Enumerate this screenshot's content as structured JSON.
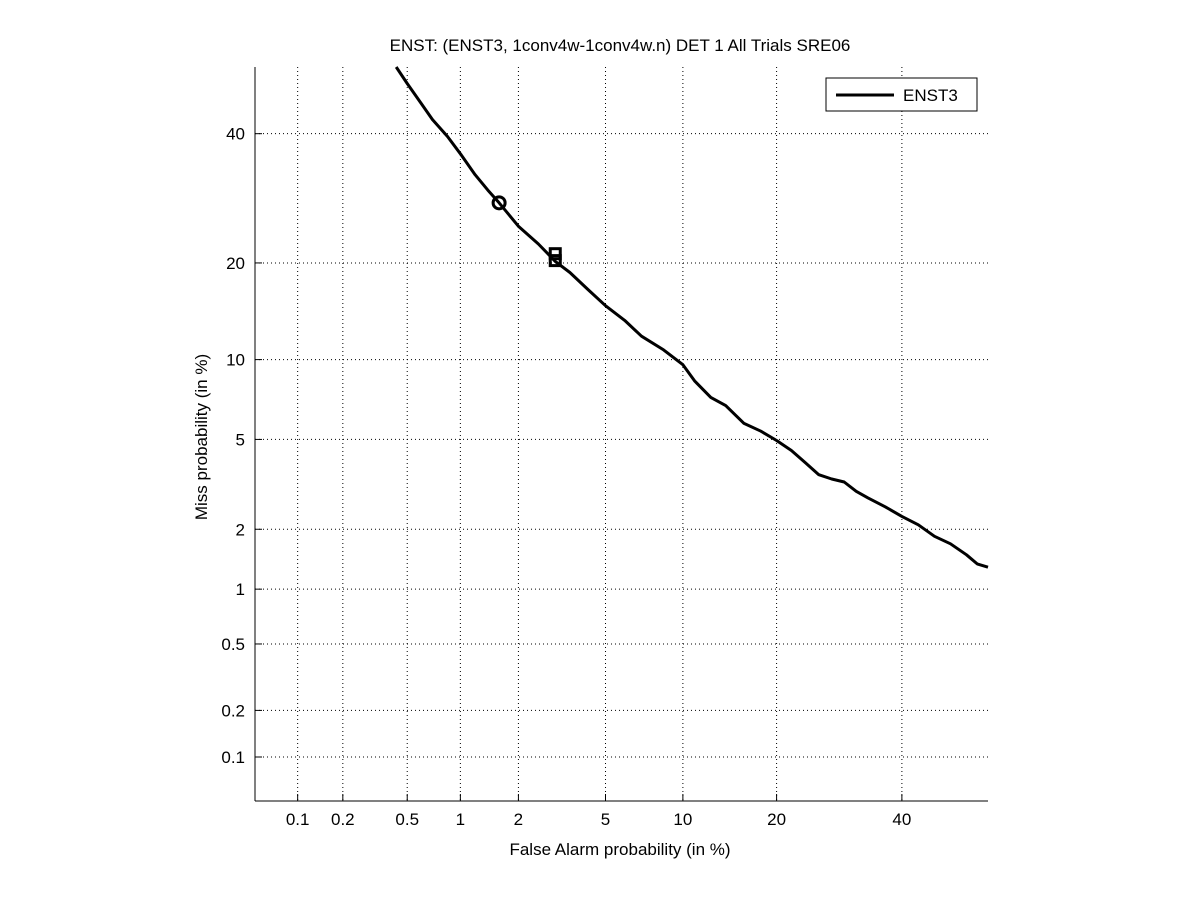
{
  "chart_data": {
    "type": "line",
    "title": "ENST: (ENST3, 1conv4w-1conv4w.n) DET 1 All Trials SRE06",
    "xlabel": "False Alarm probability (in %)",
    "ylabel": "Miss probability (in %)",
    "x_scale": "normal-deviate (probit)",
    "y_scale": "normal-deviate (probit)",
    "xlim": [
      0.05,
      56
    ],
    "ylim": [
      0.05,
      52
    ],
    "x_ticks": [
      0.1,
      0.2,
      0.5,
      1,
      2,
      5,
      10,
      20,
      40
    ],
    "x_tick_labels": [
      "0.1",
      "0.2",
      "0.5",
      "1",
      "2",
      "5",
      "10",
      "20",
      "40"
    ],
    "y_ticks": [
      0.1,
      0.2,
      0.5,
      1,
      2,
      5,
      10,
      20,
      40
    ],
    "y_tick_labels": [
      "0.1",
      "0.2",
      "0.5",
      "1",
      "2",
      "5",
      "10",
      "20",
      "40"
    ],
    "grid": true,
    "grid_style": "dotted",
    "legend_position": "top-right",
    "line_color": "#000000",
    "series": [
      {
        "name": "ENST3",
        "points": [
          {
            "x": 0.43,
            "y": 52
          },
          {
            "x": 0.5,
            "y": 49
          },
          {
            "x": 0.6,
            "y": 45.5
          },
          {
            "x": 0.7,
            "y": 42.5
          },
          {
            "x": 0.85,
            "y": 39.5
          },
          {
            "x": 1.0,
            "y": 36.5
          },
          {
            "x": 1.2,
            "y": 33
          },
          {
            "x": 1.4,
            "y": 30.5
          },
          {
            "x": 1.6,
            "y": 28.5
          },
          {
            "x": 2.0,
            "y": 25
          },
          {
            "x": 2.5,
            "y": 22.5
          },
          {
            "x": 3.0,
            "y": 20.2
          },
          {
            "x": 3.5,
            "y": 18.8
          },
          {
            "x": 4.2,
            "y": 16.8
          },
          {
            "x": 5.0,
            "y": 15.0
          },
          {
            "x": 6.0,
            "y": 13.5
          },
          {
            "x": 7.0,
            "y": 12.0
          },
          {
            "x": 8.5,
            "y": 10.8
          },
          {
            "x": 10.0,
            "y": 9.6
          },
          {
            "x": 11.0,
            "y": 8.4
          },
          {
            "x": 12.5,
            "y": 7.3
          },
          {
            "x": 14.0,
            "y": 6.8
          },
          {
            "x": 16.0,
            "y": 5.8
          },
          {
            "x": 18.0,
            "y": 5.4
          },
          {
            "x": 20.0,
            "y": 4.95
          },
          {
            "x": 22.0,
            "y": 4.5
          },
          {
            "x": 24.0,
            "y": 4.0
          },
          {
            "x": 26.0,
            "y": 3.55
          },
          {
            "x": 28.0,
            "y": 3.4
          },
          {
            "x": 30.0,
            "y": 3.3
          },
          {
            "x": 32.0,
            "y": 3.0
          },
          {
            "x": 34.0,
            "y": 2.8
          },
          {
            "x": 37.0,
            "y": 2.55
          },
          {
            "x": 40.0,
            "y": 2.3
          },
          {
            "x": 43.0,
            "y": 2.1
          },
          {
            "x": 46.0,
            "y": 1.85
          },
          {
            "x": 49.0,
            "y": 1.7
          },
          {
            "x": 52.0,
            "y": 1.5
          },
          {
            "x": 54.0,
            "y": 1.35
          },
          {
            "x": 56.0,
            "y": 1.3
          }
        ]
      }
    ],
    "markers": [
      {
        "name": "circle",
        "shape": "circle",
        "x": 1.6,
        "y": 28.5
      },
      {
        "name": "square-upper",
        "shape": "square",
        "x": 3.0,
        "y": 21.2
      },
      {
        "name": "square-lower",
        "shape": "square",
        "x": 3.0,
        "y": 20.3
      }
    ],
    "legend": [
      {
        "label": "ENST3"
      }
    ]
  }
}
